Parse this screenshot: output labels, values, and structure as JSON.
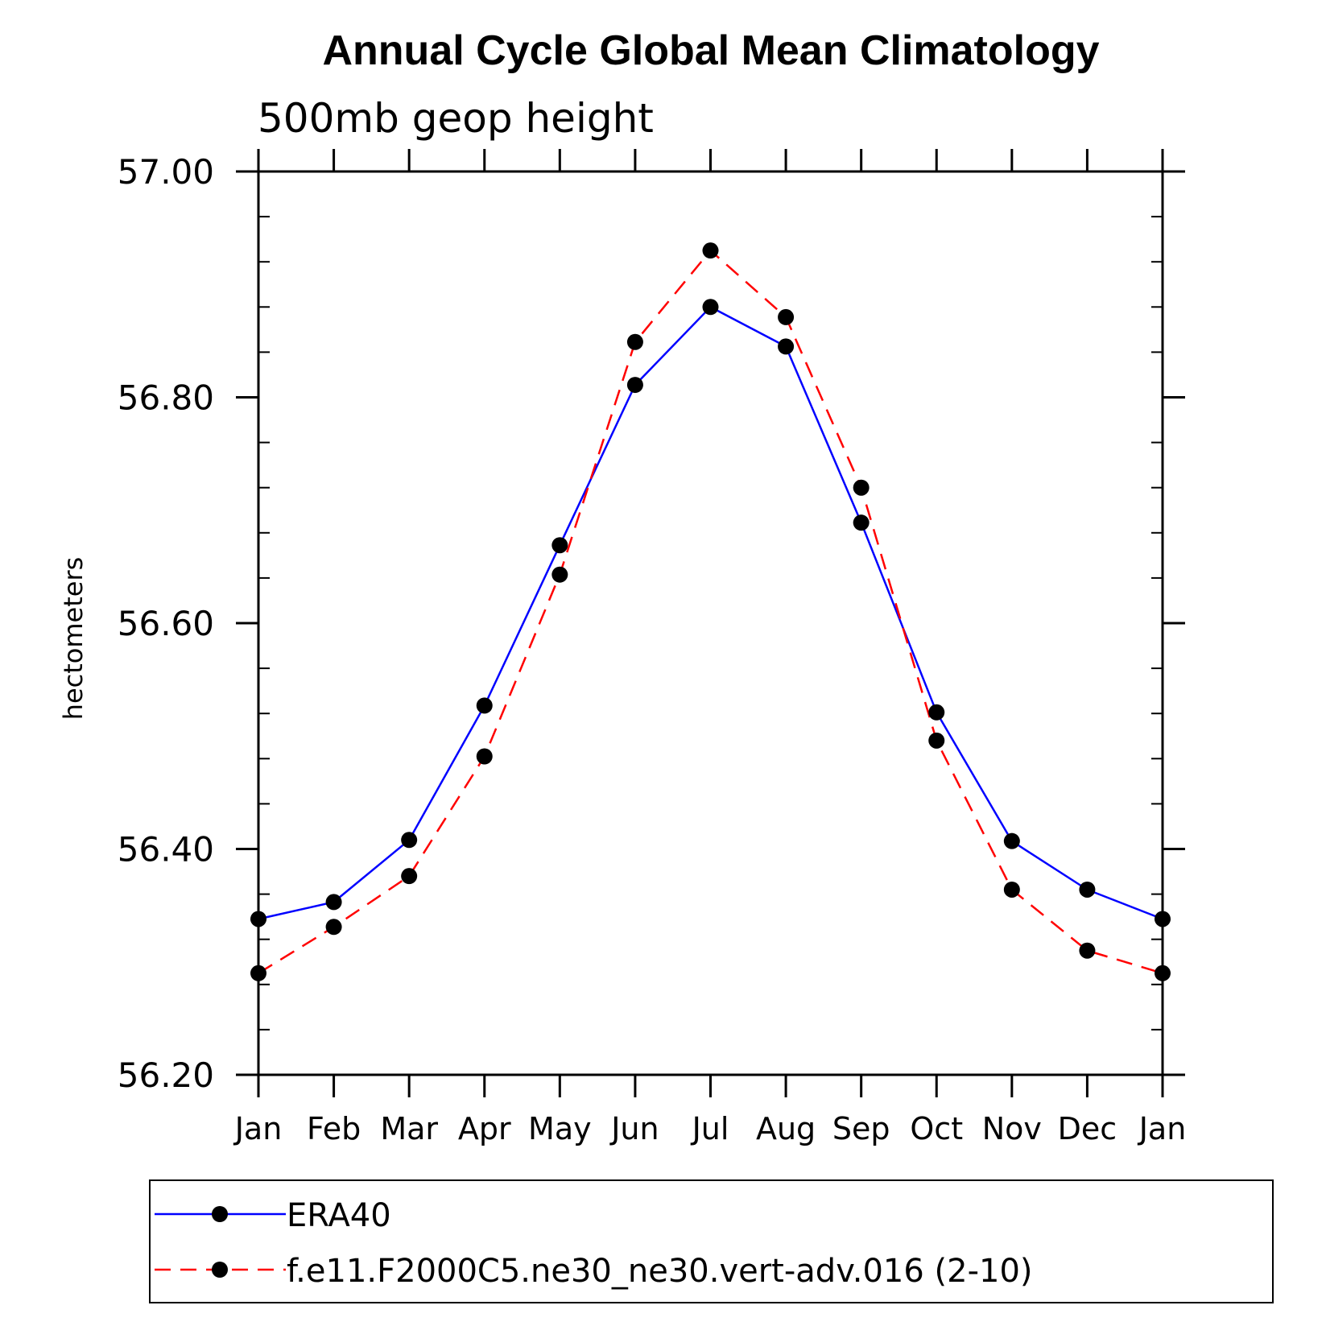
{
  "chart_data": {
    "type": "line",
    "title": "Annual Cycle Global Mean Climatology",
    "subtitle": "500mb geop height",
    "ylabel": "hectometers",
    "xlabel": "",
    "categories": [
      "Jan",
      "Feb",
      "Mar",
      "Apr",
      "May",
      "Jun",
      "Jul",
      "Aug",
      "Sep",
      "Oct",
      "Nov",
      "Dec",
      "Jan"
    ],
    "ylim": [
      56.2,
      57.0
    ],
    "yticks": [
      "56.20",
      "56.40",
      "56.60",
      "56.80",
      "57.00"
    ],
    "grid": false,
    "legend_position": "bottom",
    "series": [
      {
        "name": "ERA40",
        "color": "#0000ff",
        "line_style": "solid",
        "marker": "filled-circle",
        "values": [
          56.338,
          56.353,
          56.408,
          56.527,
          56.669,
          56.811,
          56.88,
          56.845,
          56.689,
          56.521,
          56.407,
          56.364,
          56.338
        ]
      },
      {
        "name": "f.e11.F2000C5.ne30_ne30.vert-adv.016 (2-10)",
        "color": "#ff0000",
        "line_style": "dashed",
        "marker": "filled-circle",
        "values": [
          56.29,
          56.331,
          56.376,
          56.482,
          56.643,
          56.849,
          56.93,
          56.871,
          56.72,
          56.496,
          56.364,
          56.31,
          56.29
        ]
      }
    ]
  }
}
